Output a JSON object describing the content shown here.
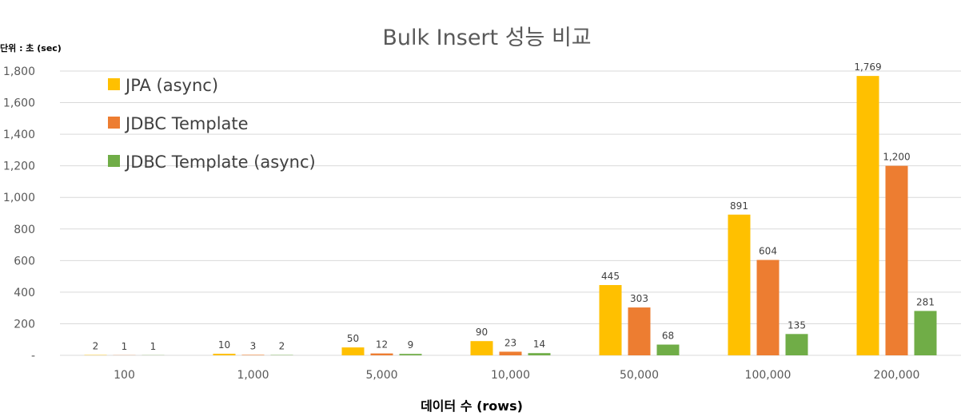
{
  "chart_data": {
    "type": "bar",
    "title": "Bulk Insert 성능 비교",
    "unit_label": "단위 : 초 (sec)",
    "xlabel": "데이터 수 (rows)",
    "ylabel": "",
    "categories": [
      "100",
      "1,000",
      "5,000",
      "10,000",
      "50,000",
      "100,000",
      "200,000"
    ],
    "series": [
      {
        "name": "JPA (async)",
        "color": "#FFC000",
        "values": [
          2,
          10,
          50,
          90,
          445,
          891,
          1769
        ],
        "labels": [
          "2",
          "10",
          "50",
          "90",
          "445",
          "891",
          "1,769"
        ]
      },
      {
        "name": "JDBC Template",
        "color": "#ED7D31",
        "values": [
          1,
          3,
          12,
          23,
          303,
          604,
          1200
        ],
        "labels": [
          "1",
          "3",
          "12",
          "23",
          "303",
          "604",
          "1,200"
        ]
      },
      {
        "name": "JDBC Template (async)",
        "color": "#70AD47",
        "values": [
          1,
          2,
          9,
          14,
          68,
          135,
          281
        ],
        "labels": [
          "1",
          "2",
          "9",
          "14",
          "68",
          "135",
          "281"
        ]
      }
    ],
    "ylim": [
      0,
      1800
    ],
    "yticks": [
      0,
      200,
      400,
      600,
      800,
      1000,
      1200,
      1400,
      1600,
      1800
    ],
    "ytick_labels": [
      "-",
      "200",
      "400",
      "600",
      "800",
      "1,000",
      "1,200",
      "1,400",
      "1,600",
      "1,800"
    ],
    "grid": true,
    "legend_position": "top-left"
  }
}
